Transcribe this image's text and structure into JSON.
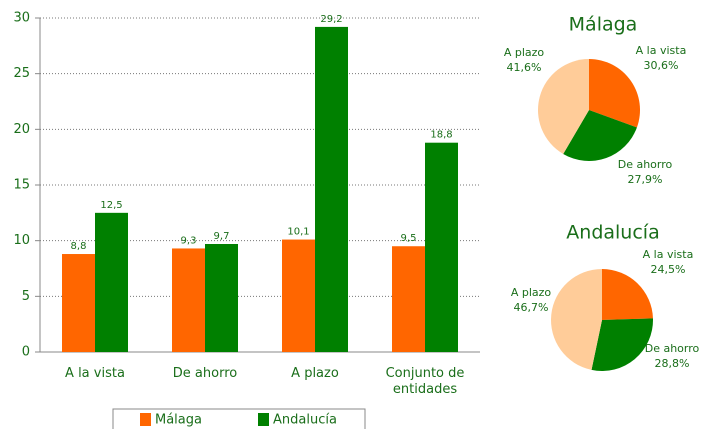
{
  "chart_data": [
    {
      "type": "bar",
      "categories": [
        "A la vista",
        "De ahorro",
        "A plazo",
        "Conjunto de entidades"
      ],
      "series": [
        {
          "name": "Málaga",
          "color": "#ff6600",
          "values": [
            8.8,
            9.3,
            10.1,
            9.5
          ],
          "value_labels": [
            "8,8",
            "9,3",
            "10,1",
            "9,5"
          ]
        },
        {
          "name": "Andalucía",
          "color": "#008000",
          "values": [
            12.5,
            9.7,
            29.2,
            18.8
          ],
          "value_labels": [
            "12,5",
            "9,7",
            "29,2",
            "18,8"
          ]
        }
      ],
      "ylim": [
        0,
        30
      ],
      "yticks": [
        0,
        5,
        10,
        15,
        20,
        25,
        30
      ],
      "grid": true
    },
    {
      "type": "pie",
      "title": "Málaga",
      "categories": [
        "A la vista",
        "De ahorro",
        "A plazo"
      ],
      "values": [
        30.6,
        27.9,
        41.6
      ],
      "value_labels": [
        "30,6%",
        "27,9%",
        "41,6%"
      ],
      "colors": [
        "#ff6600",
        "#008000",
        "#ffcc99"
      ]
    },
    {
      "type": "pie",
      "title": "Andalucía",
      "categories": [
        "A la vista",
        "De ahorro",
        "A plazo"
      ],
      "values": [
        24.5,
        28.8,
        46.7
      ],
      "value_labels": [
        "24,5%",
        "28,8%",
        "46,7%"
      ],
      "colors": [
        "#ff6600",
        "#008000",
        "#ffcc99"
      ]
    }
  ]
}
